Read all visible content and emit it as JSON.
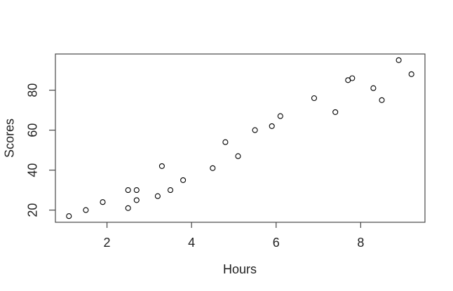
{
  "chart_data": {
    "type": "scatter",
    "title": "",
    "xlabel": "Hours",
    "ylabel": "Scores",
    "xlim": [
      0.78,
      9.52
    ],
    "ylim": [
      13.9,
      98.1
    ],
    "x_ticks": [
      2,
      4,
      6,
      8
    ],
    "y_ticks": [
      20,
      40,
      60,
      80
    ],
    "grid": false,
    "legend": null,
    "marker": "open-circle",
    "marker_color": "#000000",
    "frame_color": "#454545",
    "background": "#ffffff",
    "points": [
      {
        "x": 2.5,
        "y": 21
      },
      {
        "x": 5.1,
        "y": 47
      },
      {
        "x": 3.2,
        "y": 27
      },
      {
        "x": 8.5,
        "y": 75
      },
      {
        "x": 3.5,
        "y": 30
      },
      {
        "x": 1.5,
        "y": 20
      },
      {
        "x": 9.2,
        "y": 88
      },
      {
        "x": 5.5,
        "y": 60
      },
      {
        "x": 8.3,
        "y": 81
      },
      {
        "x": 2.7,
        "y": 25
      },
      {
        "x": 7.7,
        "y": 85
      },
      {
        "x": 5.9,
        "y": 62
      },
      {
        "x": 4.5,
        "y": 41
      },
      {
        "x": 3.3,
        "y": 42
      },
      {
        "x": 1.1,
        "y": 17
      },
      {
        "x": 8.9,
        "y": 95
      },
      {
        "x": 2.5,
        "y": 30
      },
      {
        "x": 1.9,
        "y": 24
      },
      {
        "x": 6.1,
        "y": 67
      },
      {
        "x": 7.4,
        "y": 69
      },
      {
        "x": 2.7,
        "y": 30
      },
      {
        "x": 4.8,
        "y": 54
      },
      {
        "x": 3.8,
        "y": 35
      },
      {
        "x": 6.9,
        "y": 76
      },
      {
        "x": 7.8,
        "y": 86
      }
    ]
  }
}
